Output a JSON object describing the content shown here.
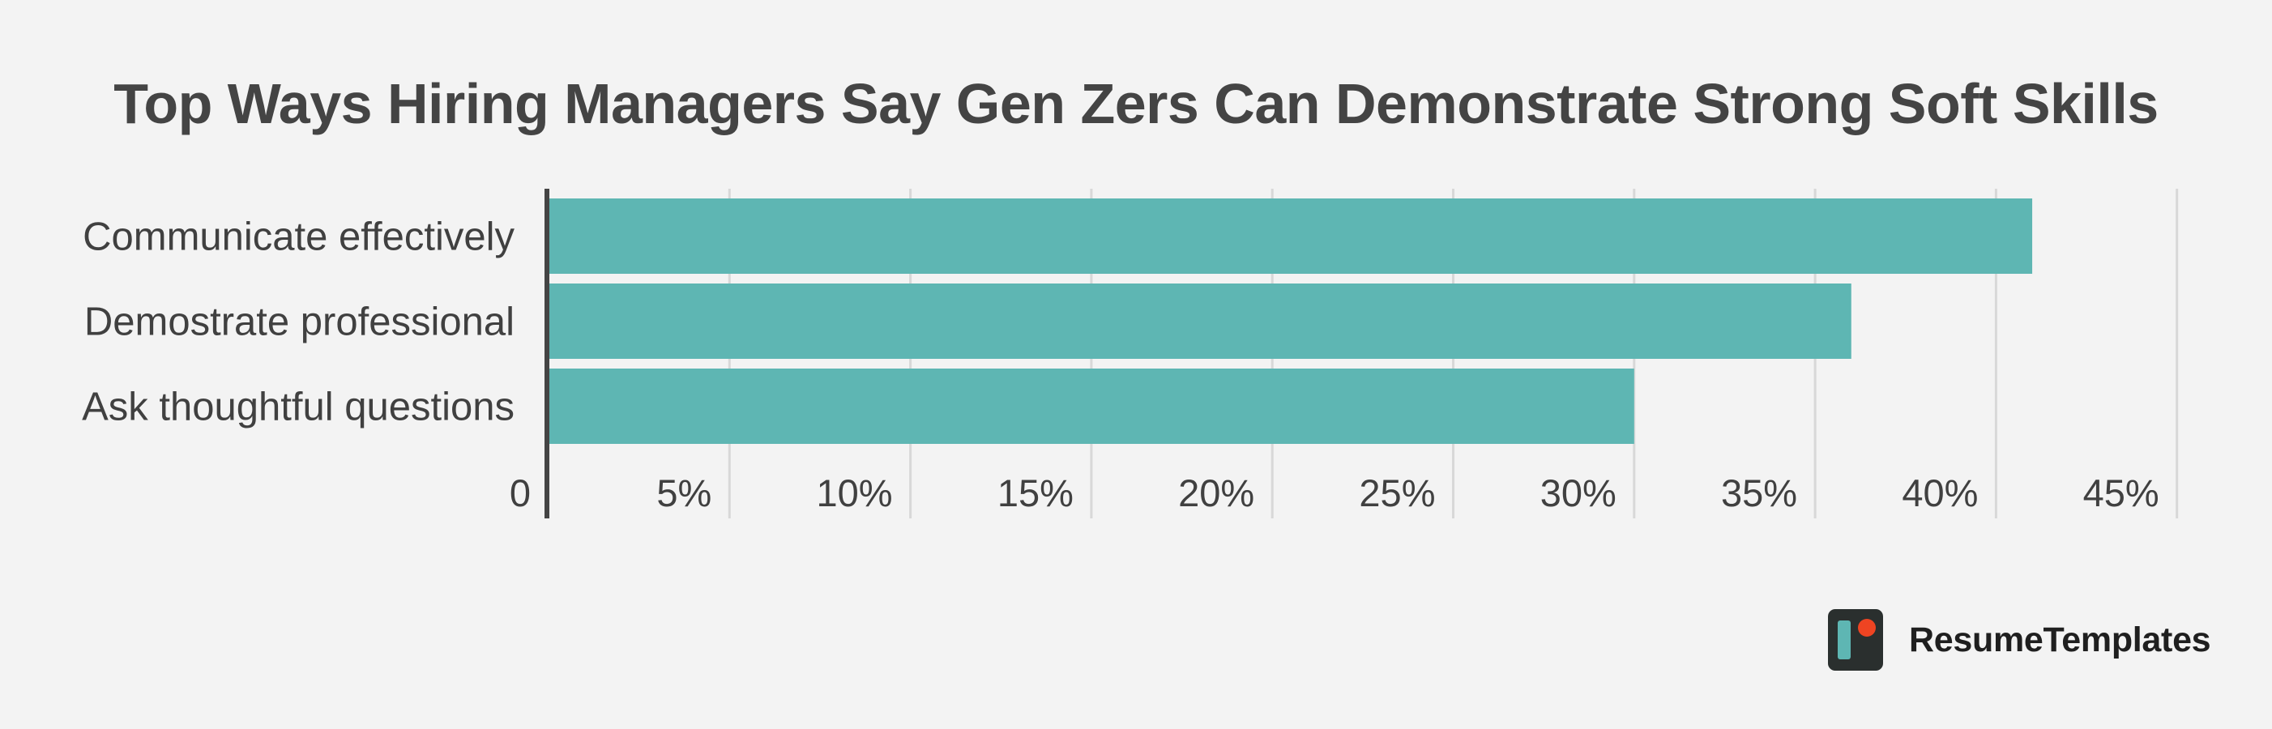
{
  "chart_data": {
    "type": "bar",
    "orientation": "horizontal",
    "title": "Top Ways Hiring Managers Say Gen Zers Can Demonstrate Strong Soft Skills",
    "categories": [
      "Communicate effectively",
      "Demostrate professional",
      "Ask thoughtful questions"
    ],
    "values": [
      41,
      36,
      30
    ],
    "xlim": [
      0,
      45
    ],
    "ticks": [
      0,
      5,
      10,
      15,
      20,
      25,
      30,
      35,
      40,
      45
    ],
    "tick_labels": [
      "0",
      "5%",
      "10%",
      "15%",
      "20%",
      "25%",
      "30%",
      "35%",
      "40%",
      "45%"
    ],
    "grid": true,
    "bar_color": "#5eb6b3",
    "axis_color": "#444444",
    "grid_color": "#d8d8d8"
  },
  "brand": {
    "name": "ResumeTemplates",
    "logo_icon": "resume-templates-logo-icon",
    "logo_dark": "#2a2f2e",
    "logo_teal": "#5eb6b3",
    "logo_dot": "#ee4422"
  }
}
